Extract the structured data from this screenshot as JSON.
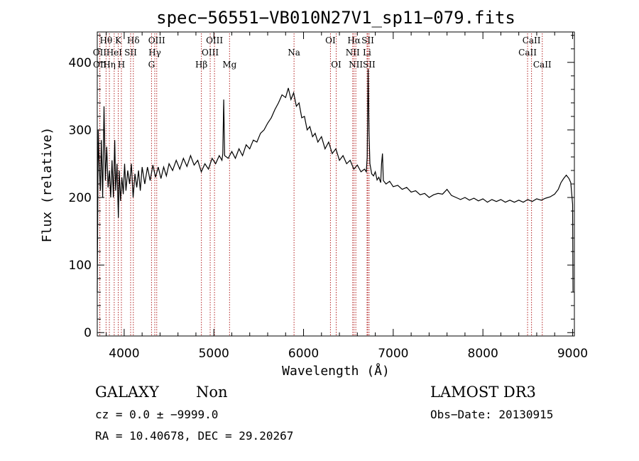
{
  "chart_data": {
    "type": "line",
    "title": "spec−56551−VB010N27V1_sp11−079.fits",
    "xlabel": "Wavelength (Å)",
    "ylabel": "Flux (relative)",
    "xlim": [
      3700,
      9020
    ],
    "ylim": [
      -5,
      445
    ],
    "x_ticks": [
      4000,
      5000,
      6000,
      7000,
      8000,
      9000
    ],
    "y_ticks": [
      0,
      100,
      200,
      300,
      400
    ],
    "series": [
      {
        "name": "flux",
        "points": [
          [
            3700,
            60
          ],
          [
            3710,
            300
          ],
          [
            3720,
            255
          ],
          [
            3735,
            210
          ],
          [
            3745,
            285
          ],
          [
            3760,
            200
          ],
          [
            3775,
            335
          ],
          [
            3790,
            225
          ],
          [
            3805,
            275
          ],
          [
            3820,
            215
          ],
          [
            3835,
            240
          ],
          [
            3850,
            200
          ],
          [
            3865,
            255
          ],
          [
            3880,
            200
          ],
          [
            3895,
            285
          ],
          [
            3905,
            210
          ],
          [
            3920,
            250
          ],
          [
            3935,
            170
          ],
          [
            3945,
            240
          ],
          [
            3960,
            195
          ],
          [
            3975,
            230
          ],
          [
            3990,
            205
          ],
          [
            4005,
            250
          ],
          [
            4020,
            210
          ],
          [
            4040,
            240
          ],
          [
            4060,
            220
          ],
          [
            4080,
            250
          ],
          [
            4100,
            200
          ],
          [
            4120,
            235
          ],
          [
            4140,
            215
          ],
          [
            4160,
            240
          ],
          [
            4180,
            210
          ],
          [
            4200,
            245
          ],
          [
            4230,
            220
          ],
          [
            4260,
            245
          ],
          [
            4290,
            225
          ],
          [
            4320,
            248
          ],
          [
            4350,
            230
          ],
          [
            4380,
            245
          ],
          [
            4410,
            228
          ],
          [
            4440,
            245
          ],
          [
            4470,
            232
          ],
          [
            4500,
            250
          ],
          [
            4540,
            240
          ],
          [
            4580,
            255
          ],
          [
            4620,
            242
          ],
          [
            4660,
            258
          ],
          [
            4700,
            246
          ],
          [
            4740,
            262
          ],
          [
            4780,
            248
          ],
          [
            4820,
            255
          ],
          [
            4860,
            238
          ],
          [
            4900,
            250
          ],
          [
            4940,
            242
          ],
          [
            4980,
            258
          ],
          [
            5020,
            250
          ],
          [
            5060,
            262
          ],
          [
            5090,
            255
          ],
          [
            5100,
            265
          ],
          [
            5110,
            345
          ],
          [
            5120,
            262
          ],
          [
            5160,
            258
          ],
          [
            5200,
            268
          ],
          [
            5240,
            258
          ],
          [
            5280,
            272
          ],
          [
            5320,
            262
          ],
          [
            5360,
            278
          ],
          [
            5400,
            272
          ],
          [
            5440,
            285
          ],
          [
            5480,
            282
          ],
          [
            5520,
            295
          ],
          [
            5560,
            300
          ],
          [
            5600,
            310
          ],
          [
            5640,
            318
          ],
          [
            5680,
            330
          ],
          [
            5720,
            340
          ],
          [
            5760,
            352
          ],
          [
            5800,
            348
          ],
          [
            5830,
            362
          ],
          [
            5860,
            345
          ],
          [
            5890,
            355
          ],
          [
            5920,
            335
          ],
          [
            5950,
            340
          ],
          [
            5980,
            318
          ],
          [
            6010,
            320
          ],
          [
            6040,
            300
          ],
          [
            6070,
            305
          ],
          [
            6100,
            290
          ],
          [
            6130,
            295
          ],
          [
            6160,
            282
          ],
          [
            6200,
            290
          ],
          [
            6240,
            272
          ],
          [
            6280,
            282
          ],
          [
            6320,
            265
          ],
          [
            6360,
            272
          ],
          [
            6400,
            255
          ],
          [
            6440,
            262
          ],
          [
            6480,
            250
          ],
          [
            6520,
            255
          ],
          [
            6560,
            242
          ],
          [
            6600,
            248
          ],
          [
            6640,
            238
          ],
          [
            6680,
            242
          ],
          [
            6700,
            238
          ],
          [
            6710,
            260
          ],
          [
            6720,
            390
          ],
          [
            6730,
            300
          ],
          [
            6740,
            250
          ],
          [
            6760,
            235
          ],
          [
            6780,
            232
          ],
          [
            6800,
            238
          ],
          [
            6820,
            226
          ],
          [
            6840,
            230
          ],
          [
            6860,
            222
          ],
          [
            6870,
            250
          ],
          [
            6880,
            265
          ],
          [
            6890,
            225
          ],
          [
            6920,
            220
          ],
          [
            6960,
            224
          ],
          [
            7000,
            216
          ],
          [
            7050,
            218
          ],
          [
            7100,
            212
          ],
          [
            7150,
            215
          ],
          [
            7200,
            208
          ],
          [
            7250,
            210
          ],
          [
            7300,
            204
          ],
          [
            7350,
            206
          ],
          [
            7400,
            200
          ],
          [
            7450,
            204
          ],
          [
            7500,
            206
          ],
          [
            7550,
            205
          ],
          [
            7600,
            212
          ],
          [
            7650,
            203
          ],
          [
            7700,
            200
          ],
          [
            7750,
            197
          ],
          [
            7800,
            200
          ],
          [
            7850,
            196
          ],
          [
            7900,
            199
          ],
          [
            7950,
            195
          ],
          [
            8000,
            198
          ],
          [
            8050,
            193
          ],
          [
            8100,
            197
          ],
          [
            8150,
            194
          ],
          [
            8200,
            197
          ],
          [
            8250,
            193
          ],
          [
            8300,
            196
          ],
          [
            8350,
            193
          ],
          [
            8400,
            196
          ],
          [
            8450,
            193
          ],
          [
            8500,
            197
          ],
          [
            8550,
            194
          ],
          [
            8600,
            198
          ],
          [
            8650,
            196
          ],
          [
            8700,
            199
          ],
          [
            8750,
            201
          ],
          [
            8800,
            205
          ],
          [
            8840,
            212
          ],
          [
            8870,
            222
          ],
          [
            8900,
            228
          ],
          [
            8930,
            233
          ],
          [
            8960,
            228
          ],
          [
            8980,
            222
          ],
          [
            9000,
            190
          ],
          [
            9005,
            60
          ]
        ]
      }
    ],
    "spectral_lines": [
      {
        "name": "OII",
        "wavelength": 3727,
        "row": 1
      },
      {
        "name": "OII",
        "wavelength": 3729,
        "row": 2
      },
      {
        "name": "Hθ",
        "wavelength": 3798,
        "row": 0
      },
      {
        "name": "Hη",
        "wavelength": 3835,
        "row": 2
      },
      {
        "name": "HeI",
        "wavelength": 3889,
        "row": 1
      },
      {
        "name": "K",
        "wavelength": 3934,
        "row": 0
      },
      {
        "name": "H",
        "wavelength": 3969,
        "row": 2
      },
      {
        "name": "SII",
        "wavelength": 4072,
        "row": 1
      },
      {
        "name": "Hδ",
        "wavelength": 4102,
        "row": 0
      },
      {
        "name": "G",
        "wavelength": 4305,
        "row": 2
      },
      {
        "name": "Hγ",
        "wavelength": 4341,
        "row": 1
      },
      {
        "name": "OIII",
        "wavelength": 4363,
        "row": 0
      },
      {
        "name": "Hβ",
        "wavelength": 4861,
        "row": 2
      },
      {
        "name": "OIII",
        "wavelength": 4959,
        "row": 1
      },
      {
        "name": "OIII",
        "wavelength": 5007,
        "row": 0
      },
      {
        "name": "Mg",
        "wavelength": 5175,
        "row": 2
      },
      {
        "name": "Na",
        "wavelength": 5894,
        "row": 1
      },
      {
        "name": "OI",
        "wavelength": 6300,
        "row": 0
      },
      {
        "name": "OI",
        "wavelength": 6364,
        "row": 2
      },
      {
        "name": "NII",
        "wavelength": 6548,
        "row": 1
      },
      {
        "name": "Hα",
        "wavelength": 6563,
        "row": 0
      },
      {
        "name": "NII",
        "wavelength": 6583,
        "row": 2
      },
      {
        "name": "Li",
        "wavelength": 6708,
        "row": 1
      },
      {
        "name": "SII",
        "wavelength": 6716,
        "row": 0
      },
      {
        "name": "SII",
        "wavelength": 6731,
        "row": 2
      },
      {
        "name": "CaII",
        "wavelength": 8498,
        "row": 1
      },
      {
        "name": "CaII",
        "wavelength": 8542,
        "row": 0
      },
      {
        "name": "CaII",
        "wavelength": 8662,
        "row": 2
      }
    ],
    "line_color": "#b22222",
    "spectrum_color": "#000000"
  },
  "info": {
    "class": "GALAXY",
    "subclass": "Non",
    "survey": "LAMOST DR3",
    "cz": "cz = 0.0 ± −9999.0",
    "obs_date": "Obs−Date: 20130915",
    "coords": "RA =  10.40678, DEC =  29.20267"
  }
}
